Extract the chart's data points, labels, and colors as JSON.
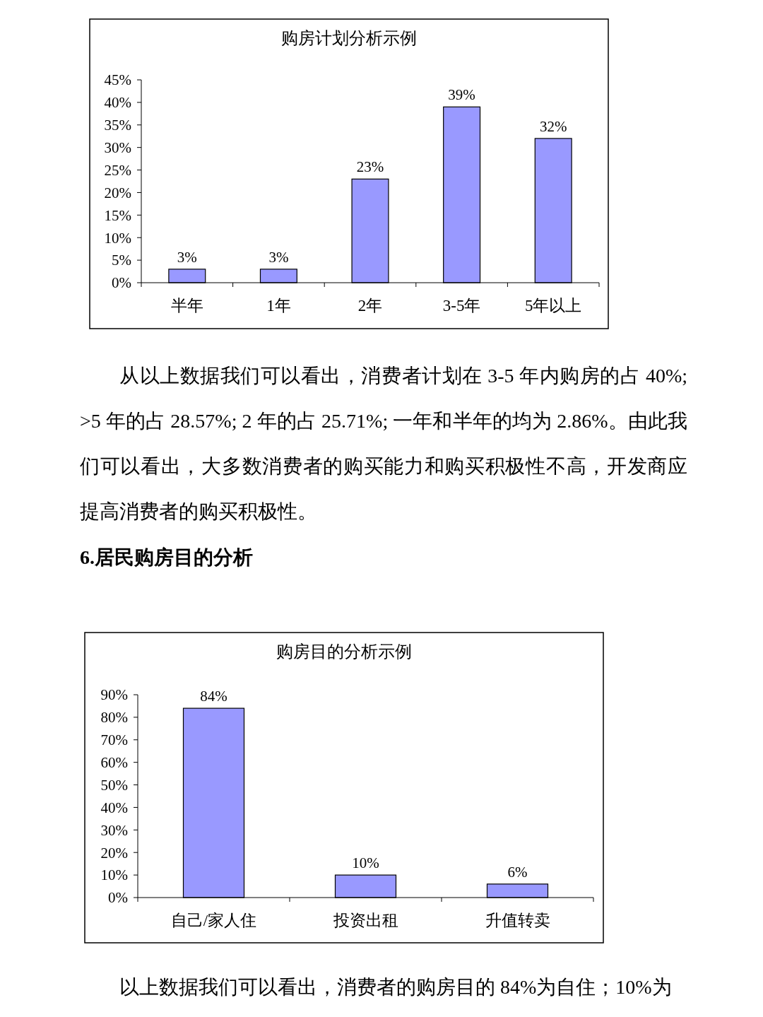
{
  "chart_data": [
    {
      "type": "bar",
      "title": "购房计划分析示例",
      "categories": [
        "半年",
        "1年",
        "2年",
        "3-5年",
        "5年以上"
      ],
      "values": [
        3,
        3,
        23,
        39,
        32
      ],
      "color": "#9999ff",
      "ylim": [
        0,
        45
      ],
      "yticks": [
        {
          "value": 0,
          "label": "0%"
        },
        {
          "value": 5,
          "label": "5%"
        },
        {
          "value": 10,
          "label": "10%"
        },
        {
          "value": 15,
          "label": "15%"
        },
        {
          "value": 20,
          "label": "20%"
        },
        {
          "value": 25,
          "label": "25%"
        },
        {
          "value": 30,
          "label": "30%"
        },
        {
          "value": 35,
          "label": "35%"
        },
        {
          "value": 40,
          "label": "40%"
        },
        {
          "value": 45,
          "label": "45%"
        }
      ],
      "value_labels": [
        "3%",
        "3%",
        "23%",
        "39%",
        "32%"
      ],
      "grid": false,
      "annotations": [
        "从以上数据我们可以看出，消费者计划在 3-5 年内购房的占 40%; >5 年的占 28.57%; 2 年的占 25.71%; 一年和半年的均为 2.86%。由此我们可以看出，大多数消费者的购买能力和购买积极性不高，开发商应提高消费者的购买积极性。",
        "6.居民购房目的分析"
      ]
    },
    {
      "type": "bar",
      "title": "购房目的分析示例",
      "categories": [
        "自己/家人住",
        "投资出租",
        "升值转卖"
      ],
      "values": [
        84,
        10,
        6
      ],
      "color": "#9999ff",
      "ylim": [
        0,
        90
      ],
      "yticks": [
        {
          "value": 0,
          "label": "0%"
        },
        {
          "value": 10,
          "label": "10%"
        },
        {
          "value": 20,
          "label": "20%"
        },
        {
          "value": 30,
          "label": "30%"
        },
        {
          "value": 40,
          "label": "40%"
        },
        {
          "value": 50,
          "label": "50%"
        },
        {
          "value": 60,
          "label": "60%"
        },
        {
          "value": 70,
          "label": "70%"
        },
        {
          "value": 80,
          "label": "80%"
        },
        {
          "value": 90,
          "label": "90%"
        }
      ],
      "value_labels": [
        "84%",
        "10%",
        "6%"
      ],
      "grid": false,
      "annotations": [
        "以上数据我们可以看出，消费者的购房目的 84%为自住；10%为"
      ]
    }
  ]
}
